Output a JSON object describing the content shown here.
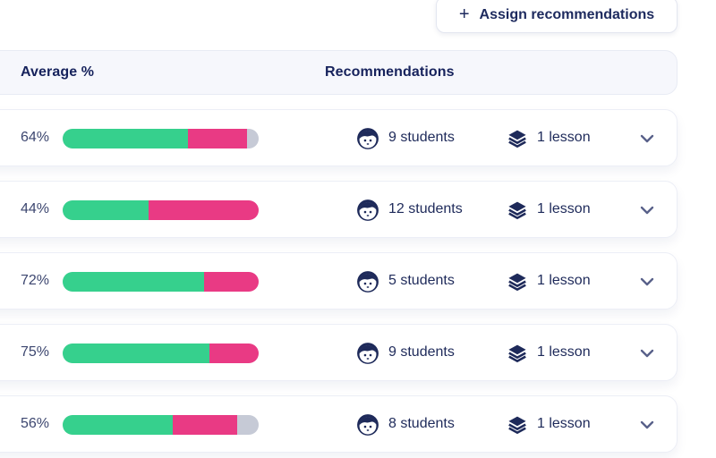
{
  "colors": {
    "green": "#36d08d",
    "pink": "#e93a84",
    "gray": "#c6cad6",
    "navy": "#1e2a5a",
    "slate": "#3d4770",
    "header_bg": "#f6f7fc",
    "border": "#e8ebf4"
  },
  "toolbar": {
    "assign_button_label": "Assign recommendations",
    "plus_icon": "+"
  },
  "table": {
    "headers": {
      "average": "Average %",
      "recommendations": "Recommendations"
    },
    "rows": [
      {
        "average_pct": "64%",
        "segments": {
          "green": 64,
          "pink": 30,
          "gray": 6
        },
        "students": "9 students",
        "lessons": "1 lesson"
      },
      {
        "average_pct": "44%",
        "segments": {
          "green": 44,
          "pink": 56,
          "gray": 0
        },
        "students": "12 students",
        "lessons": "1 lesson"
      },
      {
        "average_pct": "72%",
        "segments": {
          "green": 72,
          "pink": 28,
          "gray": 0
        },
        "students": "5 students",
        "lessons": "1 lesson"
      },
      {
        "average_pct": "75%",
        "segments": {
          "green": 75,
          "pink": 25,
          "gray": 0
        },
        "students": "9 students",
        "lessons": "1 lesson"
      },
      {
        "average_pct": "56%",
        "segments": {
          "green": 56,
          "pink": 33,
          "gray": 11
        },
        "students": "8 students",
        "lessons": "1 lesson"
      }
    ]
  }
}
